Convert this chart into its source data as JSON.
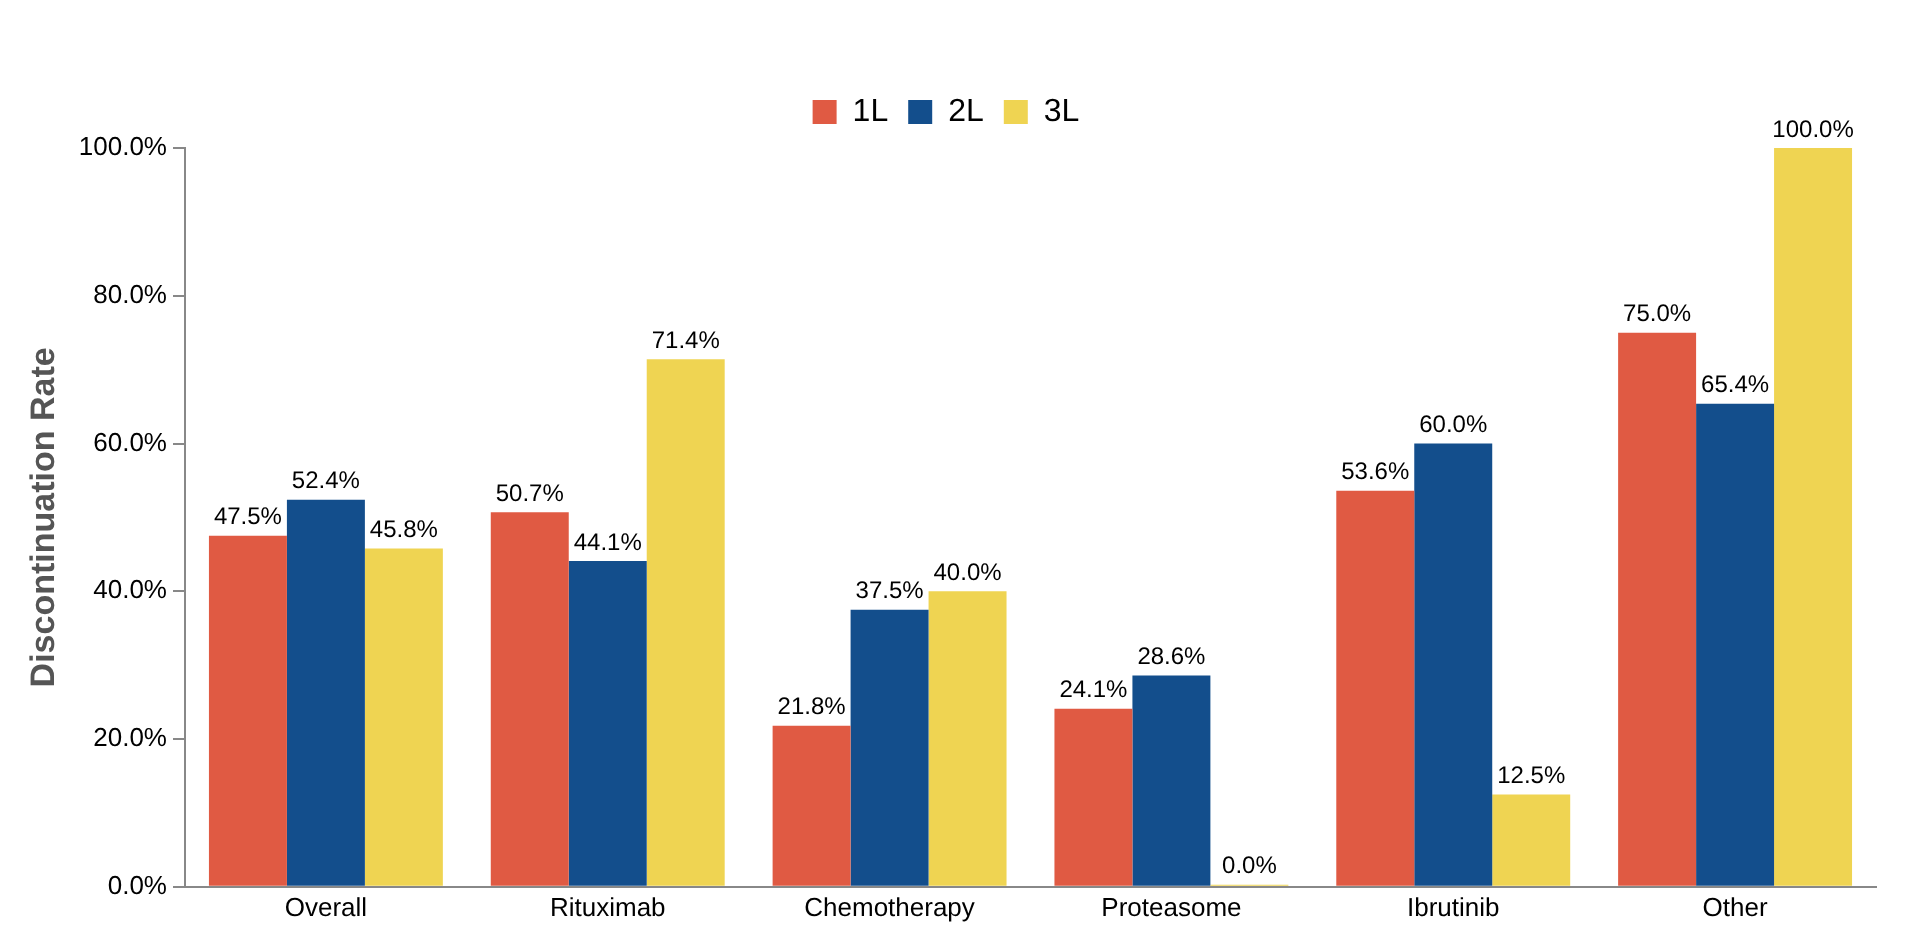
{
  "chart_data": {
    "type": "bar",
    "ylabel": "Discontinuation Rate",
    "categories": [
      "Overall",
      "Rituximab",
      "Chemotherapy",
      "Proteasome",
      "Ibrutinib",
      "Other"
    ],
    "series": [
      {
        "name": "1L",
        "color": "#e05a43",
        "values": [
          47.5,
          50.7,
          21.8,
          24.1,
          53.6,
          75.0
        ],
        "value_labels": [
          "47.5%",
          "50.7%",
          "21.8%",
          "24.1%",
          "53.6%",
          "75.0%"
        ]
      },
      {
        "name": "2L",
        "color": "#134e8c",
        "values": [
          52.4,
          44.1,
          37.5,
          28.6,
          60.0,
          65.4
        ],
        "value_labels": [
          "52.4%",
          "44.1%",
          "37.5%",
          "28.6%",
          "60.0%",
          "65.4%"
        ]
      },
      {
        "name": "3L",
        "color": "#efd452",
        "values": [
          45.8,
          71.4,
          40.0,
          0.0,
          12.5,
          100.0
        ],
        "value_labels": [
          "45.8%",
          "71.4%",
          "40.0%",
          "0.0%",
          "12.5%",
          "100.0%"
        ]
      }
    ],
    "ylim": [
      0,
      100
    ],
    "yticks": [
      {
        "value": 0,
        "label": "0.0%"
      },
      {
        "value": 20,
        "label": "20.0%"
      },
      {
        "value": 40,
        "label": "40.0%"
      },
      {
        "value": 60,
        "label": "60.0%"
      },
      {
        "value": 80,
        "label": "80.0%"
      },
      {
        "value": 100,
        "label": "100.0%"
      }
    ],
    "grid": false,
    "legend": "top"
  }
}
